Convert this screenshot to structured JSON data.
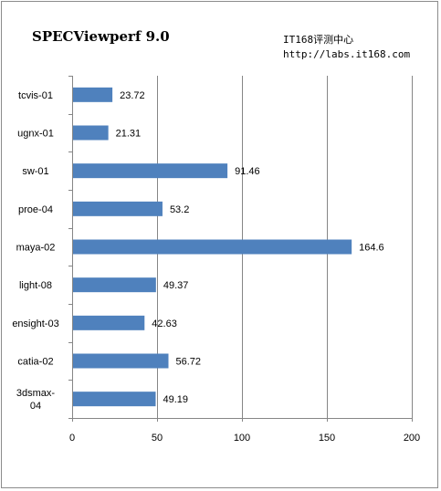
{
  "watermark": {
    "line1": "IT168评测中心",
    "line2": "http://labs.it168.com"
  },
  "chart_data": {
    "type": "bar",
    "orientation": "horizontal",
    "title": "SPECViewperf 9.0",
    "categories": [
      "tcvis-01",
      "ugnx-01",
      "sw-01",
      "proe-04",
      "maya-02",
      "light-08",
      "ensight-03",
      "catia-02",
      "3dsmax-04"
    ],
    "category_display": [
      [
        "tcvis-01"
      ],
      [
        "ugnx-01"
      ],
      [
        "sw-01"
      ],
      [
        "proe-04"
      ],
      [
        "maya-02"
      ],
      [
        "light-08"
      ],
      [
        "ensight-03"
      ],
      [
        "catia-02"
      ],
      [
        "3dsmax-",
        "04"
      ]
    ],
    "values": [
      23.72,
      21.31,
      91.46,
      53.2,
      164.6,
      49.37,
      42.63,
      56.72,
      49.19
    ],
    "value_labels": [
      "23.72",
      "21.31",
      "91.46",
      "53.2",
      "164.6",
      "49.37",
      "42.63",
      "56.72",
      "49.19"
    ],
    "xlim": [
      0,
      200
    ],
    "xticks": [
      0,
      50,
      100,
      150,
      200
    ],
    "xtick_labels": [
      "0",
      "50",
      "100",
      "150",
      "200"
    ],
    "grid": "vertical",
    "legend": "none",
    "bar_color": "#4f81bd",
    "grid_color": "#868686"
  }
}
